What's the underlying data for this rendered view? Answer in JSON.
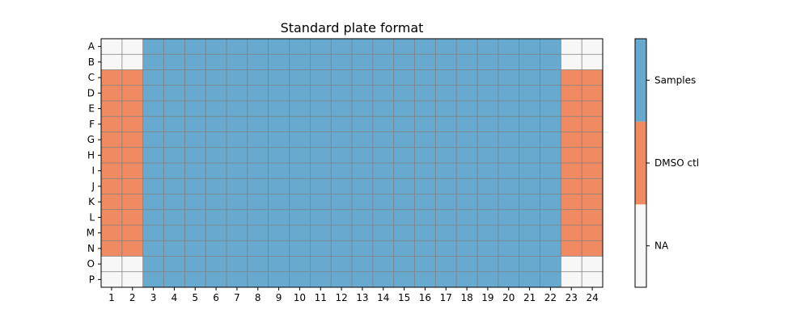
{
  "chart_data": {
    "type": "heatmap",
    "title": "Standard plate format",
    "xlabel": "",
    "ylabel": "",
    "rows": [
      "A",
      "B",
      "C",
      "D",
      "E",
      "F",
      "G",
      "H",
      "I",
      "J",
      "K",
      "L",
      "M",
      "N",
      "O",
      "P"
    ],
    "columns": [
      "1",
      "2",
      "3",
      "4",
      "5",
      "6",
      "7",
      "8",
      "9",
      "10",
      "11",
      "12",
      "13",
      "14",
      "15",
      "16",
      "17",
      "18",
      "19",
      "20",
      "21",
      "22",
      "23",
      "24"
    ],
    "categories": [
      {
        "code": 0,
        "label": "NA",
        "color": "#f7f7f7"
      },
      {
        "code": 1,
        "label": "DMSO ctl",
        "color": "#ef8a62"
      },
      {
        "code": 2,
        "label": "Samples",
        "color": "#67a9cf"
      }
    ],
    "values": [
      [
        0,
        0,
        2,
        2,
        2,
        2,
        2,
        2,
        2,
        2,
        2,
        2,
        2,
        2,
        2,
        2,
        2,
        2,
        2,
        2,
        2,
        2,
        0,
        0
      ],
      [
        0,
        0,
        2,
        2,
        2,
        2,
        2,
        2,
        2,
        2,
        2,
        2,
        2,
        2,
        2,
        2,
        2,
        2,
        2,
        2,
        2,
        2,
        0,
        0
      ],
      [
        1,
        1,
        2,
        2,
        2,
        2,
        2,
        2,
        2,
        2,
        2,
        2,
        2,
        2,
        2,
        2,
        2,
        2,
        2,
        2,
        2,
        2,
        1,
        1
      ],
      [
        1,
        1,
        2,
        2,
        2,
        2,
        2,
        2,
        2,
        2,
        2,
        2,
        2,
        2,
        2,
        2,
        2,
        2,
        2,
        2,
        2,
        2,
        1,
        1
      ],
      [
        1,
        1,
        2,
        2,
        2,
        2,
        2,
        2,
        2,
        2,
        2,
        2,
        2,
        2,
        2,
        2,
        2,
        2,
        2,
        2,
        2,
        2,
        1,
        1
      ],
      [
        1,
        1,
        2,
        2,
        2,
        2,
        2,
        2,
        2,
        2,
        2,
        2,
        2,
        2,
        2,
        2,
        2,
        2,
        2,
        2,
        2,
        2,
        1,
        1
      ],
      [
        1,
        1,
        2,
        2,
        2,
        2,
        2,
        2,
        2,
        2,
        2,
        2,
        2,
        2,
        2,
        2,
        2,
        2,
        2,
        2,
        2,
        2,
        1,
        1
      ],
      [
        1,
        1,
        2,
        2,
        2,
        2,
        2,
        2,
        2,
        2,
        2,
        2,
        2,
        2,
        2,
        2,
        2,
        2,
        2,
        2,
        2,
        2,
        1,
        1
      ],
      [
        1,
        1,
        2,
        2,
        2,
        2,
        2,
        2,
        2,
        2,
        2,
        2,
        2,
        2,
        2,
        2,
        2,
        2,
        2,
        2,
        2,
        2,
        1,
        1
      ],
      [
        1,
        1,
        2,
        2,
        2,
        2,
        2,
        2,
        2,
        2,
        2,
        2,
        2,
        2,
        2,
        2,
        2,
        2,
        2,
        2,
        2,
        2,
        1,
        1
      ],
      [
        1,
        1,
        2,
        2,
        2,
        2,
        2,
        2,
        2,
        2,
        2,
        2,
        2,
        2,
        2,
        2,
        2,
        2,
        2,
        2,
        2,
        2,
        1,
        1
      ],
      [
        1,
        1,
        2,
        2,
        2,
        2,
        2,
        2,
        2,
        2,
        2,
        2,
        2,
        2,
        2,
        2,
        2,
        2,
        2,
        2,
        2,
        2,
        1,
        1
      ],
      [
        1,
        1,
        2,
        2,
        2,
        2,
        2,
        2,
        2,
        2,
        2,
        2,
        2,
        2,
        2,
        2,
        2,
        2,
        2,
        2,
        2,
        2,
        1,
        1
      ],
      [
        1,
        1,
        2,
        2,
        2,
        2,
        2,
        2,
        2,
        2,
        2,
        2,
        2,
        2,
        2,
        2,
        2,
        2,
        2,
        2,
        2,
        2,
        1,
        1
      ],
      [
        0,
        0,
        2,
        2,
        2,
        2,
        2,
        2,
        2,
        2,
        2,
        2,
        2,
        2,
        2,
        2,
        2,
        2,
        2,
        2,
        2,
        2,
        0,
        0
      ],
      [
        0,
        0,
        2,
        2,
        2,
        2,
        2,
        2,
        2,
        2,
        2,
        2,
        2,
        2,
        2,
        2,
        2,
        2,
        2,
        2,
        2,
        2,
        0,
        0
      ]
    ],
    "grid_color": "#808080",
    "grid": true,
    "legend_position": "right"
  }
}
